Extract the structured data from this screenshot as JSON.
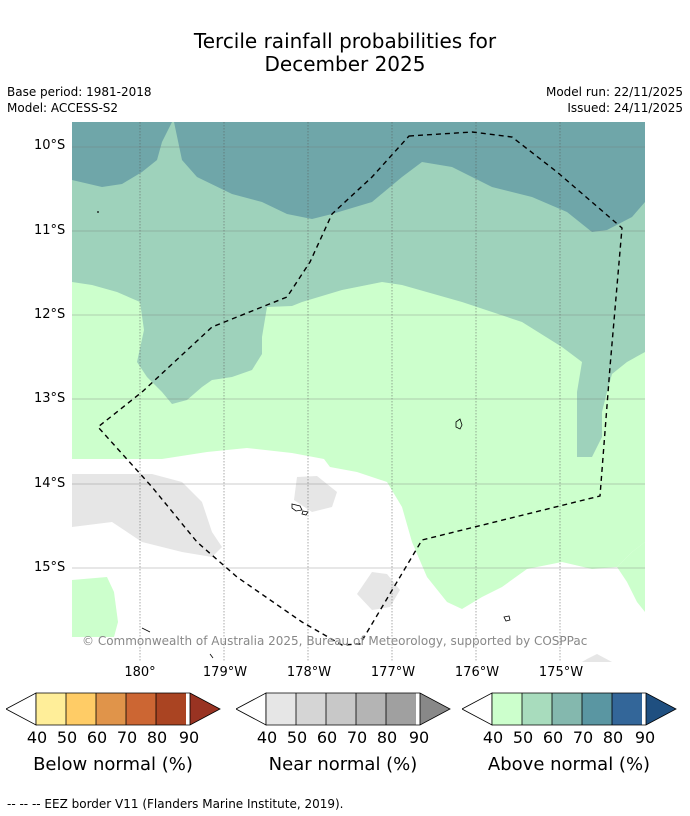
{
  "title": {
    "line1": "Tercile rainfall probabilities for",
    "line2": "December 2025"
  },
  "meta": {
    "base_period": "Base period: 1981-2018",
    "model": "Model: ACCESS-S2",
    "model_run": "Model run: 22/11/2025",
    "issued": "Issued: 24/11/2025"
  },
  "map": {
    "lat_labels": [
      "10°S",
      "11°S",
      "12°S",
      "13°S",
      "14°S",
      "15°S"
    ],
    "lon_labels": [
      "180°",
      "179°W",
      "178°W",
      "177°W",
      "176°W",
      "175°W"
    ],
    "copyright": "© Commonwealth of Australia 2025, Bureau of Meteorology, supported by COSPPac",
    "colors": {
      "above_60": "#6fa6a9",
      "above_50": "#9ed2bb",
      "above_40": "#ccffcc",
      "near_40": "#e6e6e6",
      "ocean_white": "#ffffff"
    }
  },
  "legends": {
    "ticks": [
      "40",
      "50",
      "60",
      "70",
      "80",
      "90"
    ],
    "below": {
      "label": "Below normal (%)",
      "colors": [
        "#ffee99",
        "#ffcc66",
        "#e0944a",
        "#cc6633",
        "#aa4422",
        "#993322"
      ]
    },
    "near": {
      "label": "Near normal (%)",
      "colors": [
        "#e6e6e6",
        "#d5d5d5",
        "#c8c8c8",
        "#b4b4b4",
        "#a0a0a0",
        "#888888"
      ]
    },
    "above": {
      "label": "Above normal (%)",
      "colors": [
        "#ccffcc",
        "#a8dcbd",
        "#84b8ae",
        "#5a96a2",
        "#336699",
        "#1f4f80"
      ]
    }
  },
  "footnote": "--  --  -- EEZ border V11 (Flanders Marine Institute, 2019)."
}
